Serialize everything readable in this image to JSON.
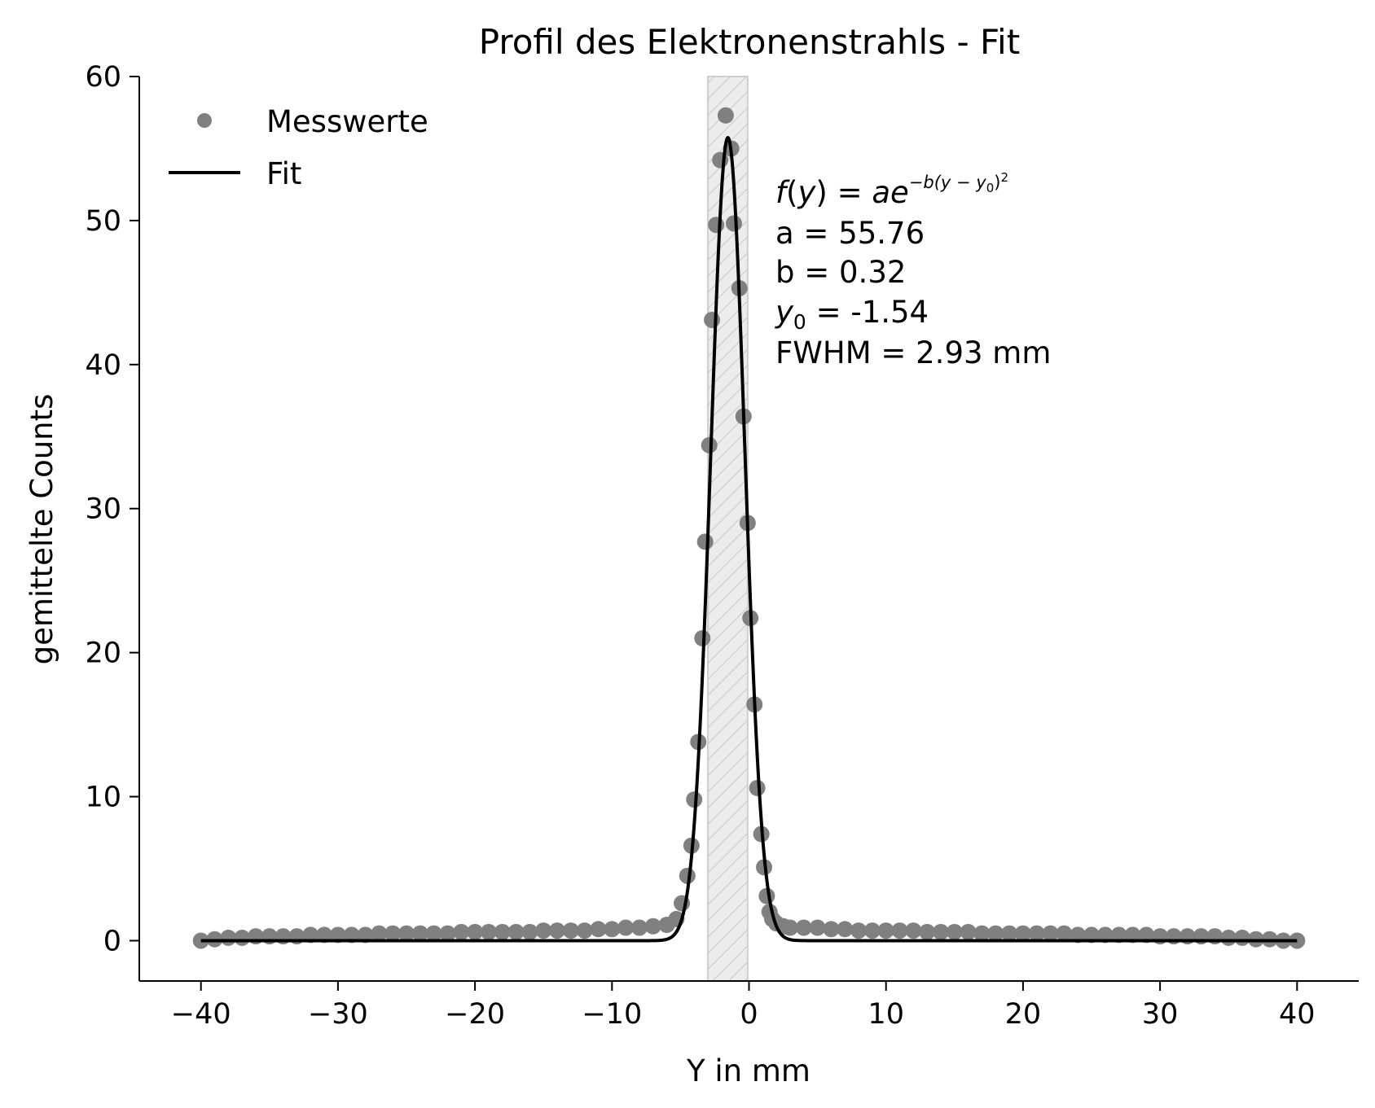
{
  "chart_data": {
    "type": "scatter",
    "title": "Profil des Elektronenstrahls - Fit",
    "xlabel": "Y in mm",
    "ylabel": "gemittelte Counts",
    "xlim": [
      -44.5,
      44.5
    ],
    "ylim": [
      -2.8,
      60
    ],
    "x_ticks": [
      -40,
      -30,
      -20,
      -10,
      0,
      10,
      20,
      30,
      40
    ],
    "x_tick_labels": [
      "−40",
      "−30",
      "−20",
      "−10",
      "0",
      "10",
      "20",
      "30",
      "40"
    ],
    "y_ticks": [
      0,
      10,
      20,
      30,
      40,
      50,
      60
    ],
    "y_tick_labels": [
      "0",
      "10",
      "20",
      "30",
      "40",
      "50",
      "60"
    ],
    "grid": false,
    "legend_position": "upper-left",
    "colors": {
      "measurements": "#808080",
      "fit": "#000000",
      "band": "#d9d9d9"
    },
    "shaded_band": {
      "x_range": [
        -3.0,
        -0.1
      ]
    },
    "series": [
      {
        "name": "Messwerte",
        "style": "markers",
        "x": [
          -40,
          -39,
          -38,
          -37,
          -36,
          -35,
          -34,
          -33,
          -32,
          -31,
          -30,
          -29,
          -28,
          -27,
          -26,
          -25,
          -24,
          -23,
          -22,
          -21,
          -20,
          -19,
          -18,
          -17,
          -16,
          -15,
          -14,
          -13,
          -12,
          -11,
          -10,
          -9,
          -8,
          -7,
          -6,
          -5.3,
          -4.9,
          -4.5,
          -4.2,
          -4.0,
          -3.7,
          -3.4,
          -3.2,
          -2.9,
          -2.7,
          -2.4,
          -2.1,
          -1.7,
          -1.3,
          -1.1,
          -0.7,
          -0.4,
          -0.1,
          0.1,
          0.4,
          0.6,
          0.9,
          1.1,
          1.3,
          1.5,
          1.7,
          2.0,
          2.5,
          3,
          4,
          5,
          6,
          7,
          8,
          9,
          10,
          11,
          12,
          13,
          14,
          15,
          16,
          17,
          18,
          19,
          20,
          21,
          22,
          23,
          24,
          25,
          26,
          27,
          28,
          29,
          30,
          31,
          32,
          33,
          34,
          35,
          36,
          37,
          38,
          39,
          40
        ],
        "y": [
          0.0,
          0.1,
          0.2,
          0.2,
          0.3,
          0.3,
          0.3,
          0.3,
          0.4,
          0.4,
          0.4,
          0.4,
          0.4,
          0.5,
          0.5,
          0.5,
          0.5,
          0.5,
          0.5,
          0.6,
          0.6,
          0.6,
          0.6,
          0.6,
          0.6,
          0.7,
          0.7,
          0.7,
          0.7,
          0.8,
          0.8,
          0.9,
          0.9,
          1.0,
          1.1,
          1.5,
          2.6,
          4.5,
          6.6,
          9.8,
          13.8,
          21.0,
          27.7,
          34.4,
          43.1,
          49.7,
          54.2,
          57.3,
          55.0,
          49.8,
          45.3,
          36.4,
          29.0,
          22.4,
          16.4,
          10.6,
          7.4,
          5.1,
          3.1,
          2.0,
          1.5,
          1.2,
          1.0,
          0.9,
          0.9,
          0.9,
          0.8,
          0.8,
          0.7,
          0.7,
          0.7,
          0.7,
          0.7,
          0.6,
          0.6,
          0.6,
          0.6,
          0.5,
          0.5,
          0.5,
          0.5,
          0.5,
          0.5,
          0.5,
          0.4,
          0.4,
          0.4,
          0.4,
          0.4,
          0.4,
          0.3,
          0.3,
          0.3,
          0.3,
          0.3,
          0.2,
          0.2,
          0.1,
          0.1,
          0.0,
          0.0
        ]
      },
      {
        "name": "Fit",
        "style": "line",
        "model": "f(y) = a*exp(-b*(y - y0)^2)",
        "params": {
          "a": 55.76,
          "b": 0.32,
          "y0": -1.54
        },
        "x_range": [
          -40,
          40
        ]
      }
    ],
    "annotation": {
      "formula_f": "f",
      "formula_y": "y",
      "formula_eq": "=",
      "formula_a": "a",
      "formula_e": "e",
      "formula_exp": "−b(y − y",
      "formula_exp_sub": "0",
      "formula_exp_close": ")",
      "formula_exp_sup": "2",
      "line_a": "a = 55.76",
      "line_b": "b = 0.32",
      "line_y0_var": "y",
      "line_y0_sub": "0",
      "line_y0_rest": " = -1.54",
      "line_fwhm": "FWHM = 2.93 mm"
    }
  }
}
